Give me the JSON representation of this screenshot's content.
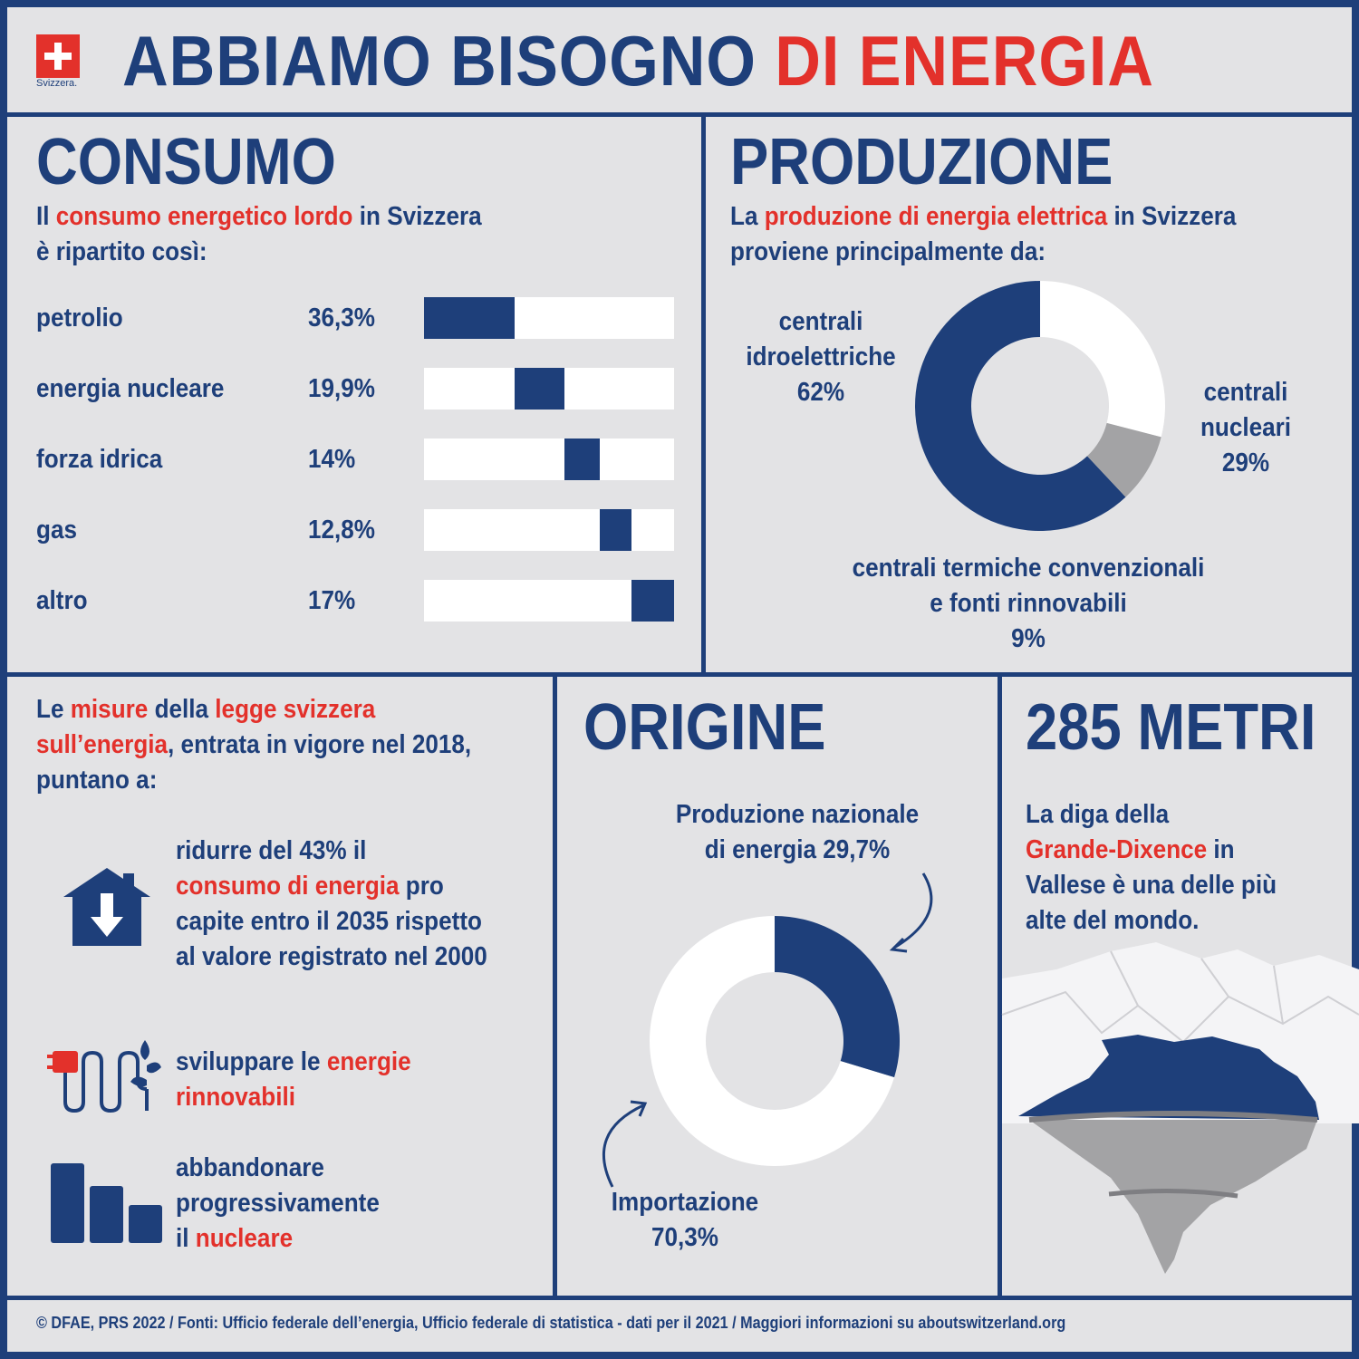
{
  "logo": {
    "name": "swiss-cross-icon",
    "text": "Svizzera."
  },
  "title": {
    "part1": "ABBIAMO BISOGNO ",
    "part2": "DI ENERGIA"
  },
  "consumo": {
    "heading": "CONSUMO",
    "intro_l1_a": "Il ",
    "intro_l1_b": "consumo energetico lordo",
    "intro_l1_c": " in Svizzera",
    "intro_l2": "è ripartito così:"
  },
  "produzione": {
    "heading": "PRODUZIONE",
    "intro_l1_a": "La ",
    "intro_l1_b": "produzione di energia elettrica",
    "intro_l1_c": " in Svizzera",
    "intro_l2": "proviene principalmente da:",
    "hydro_l1": "centrali",
    "hydro_l2": "idroelettriche",
    "hydro_pct": "62%",
    "nuclear_l1": "centrali",
    "nuclear_l2": "nucleari",
    "nuclear_pct": "29%",
    "thermal_l1": "centrali termiche convenzionali",
    "thermal_l2": "e fonti rinnovabili",
    "thermal_pct": "9%"
  },
  "misure": {
    "l1_a": "Le ",
    "l1_b": "misure",
    "l1_c": " della ",
    "l1_d": "legge svizzera",
    "l2_a": "sull’energia",
    "l2_b": ", entrata in vigore nel 2018,",
    "l3": "puntano a:",
    "item1_l1": "ridurre del 43% il",
    "item1_l2_a": "consumo di energia",
    "item1_l2_b": " pro",
    "item1_l3": "capite entro il 2035 rispetto",
    "item1_l4": "al valore registrato nel 2000",
    "item2_l1_a": "sviluppare le ",
    "item2_l1_b": "energie",
    "item2_l2": "rinnovabili",
    "item3_l1": "abbandonare",
    "item3_l2": "progressivamente",
    "item3_l3_a": "il ",
    "item3_l3_b": "nucleare"
  },
  "origine": {
    "heading": "ORIGINE",
    "national_l1": "Produzione nazionale",
    "national_l2": "di energia 29,7%",
    "import_l1": "Importazione",
    "import_l2": "70,3%"
  },
  "diga": {
    "heading": "285 METRI",
    "l1": "La diga della",
    "l2_a": "Grande-Dixence",
    "l2_b": " in",
    "l3": "Vallese è una delle più",
    "l4": "alte del mondo."
  },
  "footer": "© DFAE, PRS 2022 / Fonti: Ufficio federale dell’energia, Ufficio federale di statistica - dati per il 2021 / Maggiori informazioni su aboutswitzerland.org",
  "colors": {
    "blue": "#1e3f7a",
    "red": "#e3312b",
    "grey": "#a3a3a5",
    "white": "#ffffff",
    "background": "#e3e3e5"
  },
  "chart_data": [
    {
      "type": "bar",
      "stacked": true,
      "categories": [
        "petrolio",
        "energia nucleare",
        "forza idrica",
        "gas",
        "altro"
      ],
      "values": [
        36.3,
        19.9,
        14,
        12.8,
        17
      ],
      "value_labels": [
        "36,3%",
        "19,9%",
        "14%",
        "12,8%",
        "17%"
      ],
      "unit": "%"
    },
    {
      "type": "pie",
      "donut": true,
      "categories": [
        "centrali idroelettriche",
        "centrali nucleari",
        "centrali termiche convenzionali e fonti rinnovabili"
      ],
      "values": [
        62,
        29,
        9
      ],
      "colors": [
        "#1e3f7a",
        "#ffffff",
        "#a3a3a5"
      ]
    },
    {
      "type": "pie",
      "donut": true,
      "categories": [
        "Produzione nazionale di energia",
        "Importazione"
      ],
      "values": [
        29.7,
        70.3
      ],
      "colors": [
        "#1e3f7a",
        "#ffffff"
      ]
    }
  ]
}
